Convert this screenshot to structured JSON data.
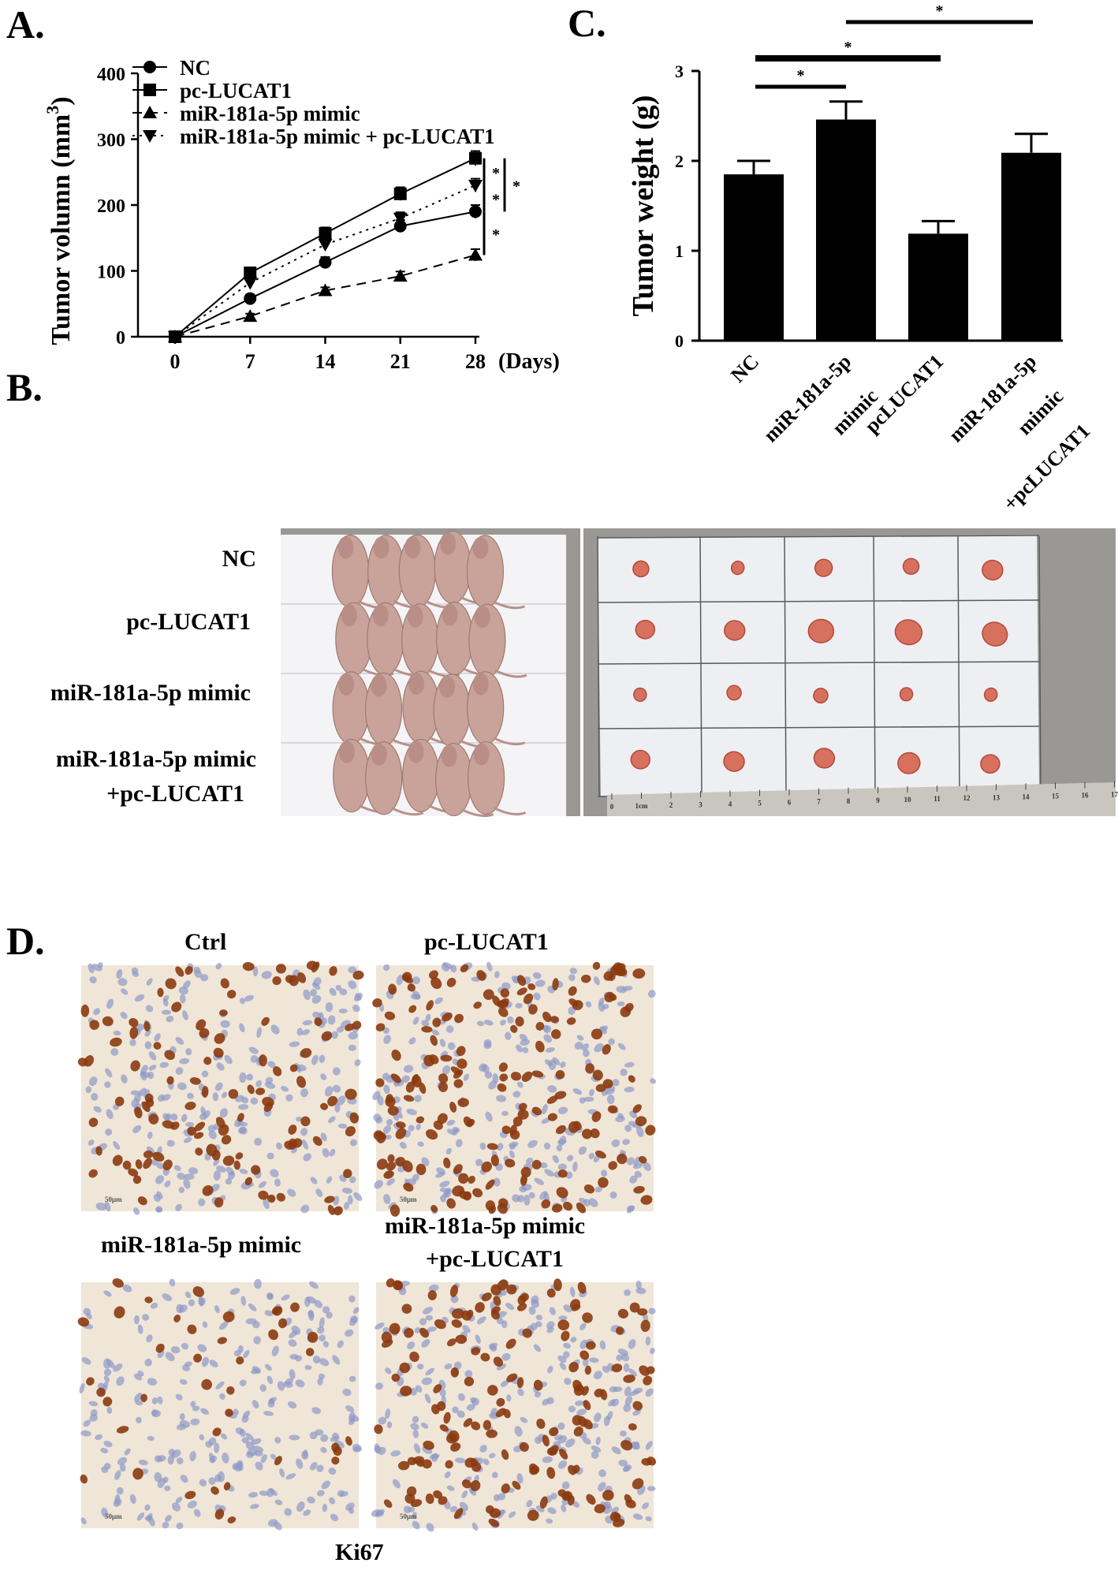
{
  "panels": {
    "a": "A.",
    "b": "B.",
    "c": "C.",
    "d": "D."
  },
  "chart_data": [
    {
      "type": "line",
      "panel": "A.",
      "ylabel": "Tumor volumn (mm",
      "ylabel_sup": "3",
      "ylabel_close": ")",
      "xlabel": "(Days)",
      "x": [
        0,
        7,
        14,
        21,
        28
      ],
      "x_tick_labels": [
        "0",
        "7",
        "14",
        "21",
        "28"
      ],
      "y_ticks": [
        0,
        100,
        200,
        300,
        400
      ],
      "ylim": [
        0,
        400
      ],
      "legend_position": "top-left",
      "series": [
        {
          "name": "NC",
          "marker": "circle",
          "dash": "solid",
          "values": [
            0,
            58,
            113,
            168,
            190
          ],
          "errors": [
            3,
            6,
            8,
            9,
            10
          ]
        },
        {
          "name": "pc-LUCAT1",
          "marker": "square",
          "dash": "solid",
          "values": [
            0,
            97,
            157,
            217,
            271
          ],
          "errors": [
            3,
            7,
            9,
            10,
            11
          ]
        },
        {
          "name": "miR-181a-5p mimic",
          "marker": "triangle-up",
          "dash": "dashed",
          "values": [
            0,
            31,
            70,
            92,
            124
          ],
          "errors": [
            2,
            4,
            5,
            7,
            9
          ]
        },
        {
          "name": "miR-181a-5p mimic + pc-LUCAT1",
          "marker": "triangle-down",
          "dash": "dotted",
          "values": [
            0,
            82,
            140,
            180,
            230
          ],
          "errors": [
            3,
            6,
            8,
            9,
            10
          ]
        }
      ],
      "significance": [
        "*",
        "*",
        "*",
        "*"
      ]
    },
    {
      "type": "bar",
      "panel": "C.",
      "ylabel": "Tumor weight (g)",
      "categories": [
        [
          "NC"
        ],
        [
          "miR-181a-5p",
          "mimic"
        ],
        [
          "pcLUCAT1"
        ],
        [
          "miR-181a-5p",
          "mimic",
          "+pcLUCAT1"
        ]
      ],
      "values": [
        1.85,
        2.46,
        1.19,
        2.09
      ],
      "errors": [
        0.15,
        0.2,
        0.14,
        0.21
      ],
      "y_ticks": [
        0,
        1,
        2,
        3
      ],
      "ylim": [
        0,
        3
      ],
      "significance": [
        "*",
        "*",
        "*"
      ]
    }
  ],
  "panel_b": {
    "row_labels": [
      "NC",
      "pc-LUCAT1",
      "miR-181a-5p  mimic",
      "miR-181a-5p  mimic",
      "+pc-LUCAT1"
    ],
    "ruler_ticks": [
      "0",
      "1cm",
      "2",
      "3",
      "4",
      "5",
      "6",
      "7",
      "8",
      "9",
      "10",
      "11",
      "12",
      "13",
      "14",
      "15",
      "16",
      "17"
    ]
  },
  "panel_d": {
    "labels": [
      "Ctrl",
      "pc-LUCAT1",
      "miR-181a-5p  mimic",
      "miR-181a-5p  mimic",
      "+pc-LUCAT1"
    ],
    "stain": "Ki67",
    "scale_text": "50μm"
  },
  "colors": {
    "ink": "#000000",
    "mouse_skin": "#c9a29a",
    "tumor": "#d8705e",
    "ihc_background": "#efe6d8",
    "ihc_brown": "#8b3a10",
    "ihc_blue": "#8f98c8",
    "photo_backdrop": "#9a9894"
  }
}
